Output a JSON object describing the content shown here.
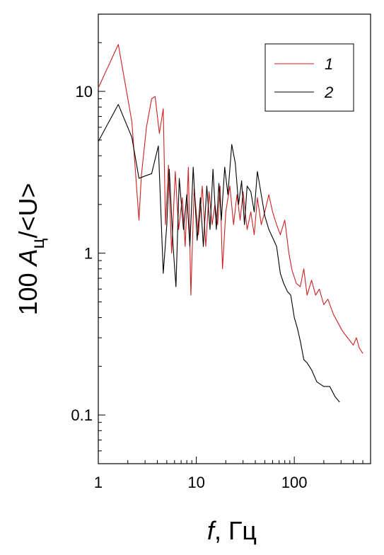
{
  "chart_data": {
    "type": "line",
    "xscale": "log",
    "yscale": "log",
    "xlim": [
      1,
      600
    ],
    "ylim": [
      0.05,
      30
    ],
    "grid": false,
    "legend_position": "top-right",
    "x_tick_labels": [
      "1",
      "10",
      "100"
    ],
    "x_ticks": [
      1,
      10,
      100
    ],
    "y_tick_labels": [
      "0.1",
      "1",
      "10"
    ],
    "y_ticks": [
      0.1,
      1,
      10
    ],
    "xlabel": {
      "var": "f",
      "rest": ", Гц"
    },
    "ylabel": {
      "pre": "100 ",
      "var": "A",
      "sub": "ц",
      "post": "/<U>"
    },
    "series": [
      {
        "name": "1",
        "color": "#cc2222",
        "points": [
          [
            1,
            10.5
          ],
          [
            1.6,
            19.5
          ],
          [
            2.2,
            6.5
          ],
          [
            2.6,
            1.6
          ],
          [
            2.75,
            3.0
          ],
          [
            3.1,
            6.0
          ],
          [
            3.5,
            9.0
          ],
          [
            3.8,
            9.3
          ],
          [
            4.2,
            5.5
          ],
          [
            4.6,
            7.8
          ],
          [
            4.85,
            1.5
          ],
          [
            5.2,
            3.5
          ],
          [
            5.6,
            1.0
          ],
          [
            6.1,
            3.2
          ],
          [
            6.6,
            1.4
          ],
          [
            7.2,
            2.2
          ],
          [
            7.7,
            1.1
          ],
          [
            8.3,
            3.4
          ],
          [
            8.8,
            0.55
          ],
          [
            9.5,
            2.5
          ],
          [
            10.5,
            1.3
          ],
          [
            11.5,
            2.6
          ],
          [
            12.5,
            1.1
          ],
          [
            13.5,
            2.4
          ],
          [
            14.5,
            1.5
          ],
          [
            15.5,
            2.0
          ],
          [
            16.5,
            1.5
          ],
          [
            17.5,
            2.6
          ],
          [
            18.5,
            0.8
          ],
          [
            20,
            1.8
          ],
          [
            22,
            2.6
          ],
          [
            24,
            1.5
          ],
          [
            26,
            2.3
          ],
          [
            28,
            1.6
          ],
          [
            30,
            2.4
          ],
          [
            33,
            1.4
          ],
          [
            36,
            1.8
          ],
          [
            39,
            1.3
          ],
          [
            42,
            2.2
          ],
          [
            46,
            1.5
          ],
          [
            50,
            1.8
          ],
          [
            55,
            2.3
          ],
          [
            60,
            1.8
          ],
          [
            66,
            1.5
          ],
          [
            72,
            1.3
          ],
          [
            80,
            1.6
          ],
          [
            88,
            1.0
          ],
          [
            95,
            0.78
          ],
          [
            105,
            0.65
          ],
          [
            115,
            0.62
          ],
          [
            125,
            0.8
          ],
          [
            135,
            0.55
          ],
          [
            150,
            0.68
          ],
          [
            165,
            0.55
          ],
          [
            180,
            0.6
          ],
          [
            200,
            0.48
          ],
          [
            220,
            0.52
          ],
          [
            250,
            0.42
          ],
          [
            280,
            0.37
          ],
          [
            310,
            0.33
          ],
          [
            350,
            0.3
          ],
          [
            400,
            0.27
          ],
          [
            430,
            0.3
          ],
          [
            460,
            0.26
          ],
          [
            500,
            0.24
          ]
        ]
      },
      {
        "name": "2",
        "color": "#000000",
        "points": [
          [
            1,
            4.9
          ],
          [
            1.6,
            8.3
          ],
          [
            2.2,
            5.2
          ],
          [
            2.6,
            2.9
          ],
          [
            3.0,
            3.0
          ],
          [
            3.5,
            3.1
          ],
          [
            4.1,
            4.6
          ],
          [
            4.6,
            0.75
          ],
          [
            5.0,
            1.5
          ],
          [
            5.3,
            3.3
          ],
          [
            5.8,
            1.1
          ],
          [
            6.2,
            0.62
          ],
          [
            6.7,
            2.9
          ],
          [
            7.4,
            1.4
          ],
          [
            8.0,
            2.3
          ],
          [
            8.6,
            1.1
          ],
          [
            9.3,
            3.4
          ],
          [
            10.2,
            1.2
          ],
          [
            11.0,
            2.2
          ],
          [
            11.8,
            1.1
          ],
          [
            12.8,
            2.6
          ],
          [
            13.8,
            1.4
          ],
          [
            14.8,
            3.3
          ],
          [
            16,
            1.4
          ],
          [
            17,
            2.7
          ],
          [
            18,
            1.6
          ],
          [
            19.5,
            3.4
          ],
          [
            21,
            2.3
          ],
          [
            23,
            4.7
          ],
          [
            25,
            3.6
          ],
          [
            27,
            2.0
          ],
          [
            29,
            2.8
          ],
          [
            31,
            1.5
          ],
          [
            33,
            2.6
          ],
          [
            36,
            2.4
          ],
          [
            39,
            1.8
          ],
          [
            42,
            3.2
          ],
          [
            46,
            2.3
          ],
          [
            50,
            1.7
          ],
          [
            55,
            1.4
          ],
          [
            60,
            1.25
          ],
          [
            66,
            1.1
          ],
          [
            72,
            0.75
          ],
          [
            78,
            0.65
          ],
          [
            85,
            0.58
          ],
          [
            92,
            0.55
          ],
          [
            100,
            0.4
          ],
          [
            108,
            0.34
          ],
          [
            116,
            0.28
          ],
          [
            125,
            0.22
          ],
          [
            135,
            0.21
          ],
          [
            150,
            0.19
          ],
          [
            170,
            0.16
          ],
          [
            200,
            0.15
          ],
          [
            230,
            0.15
          ],
          [
            260,
            0.13
          ],
          [
            290,
            0.12
          ]
        ]
      }
    ]
  }
}
